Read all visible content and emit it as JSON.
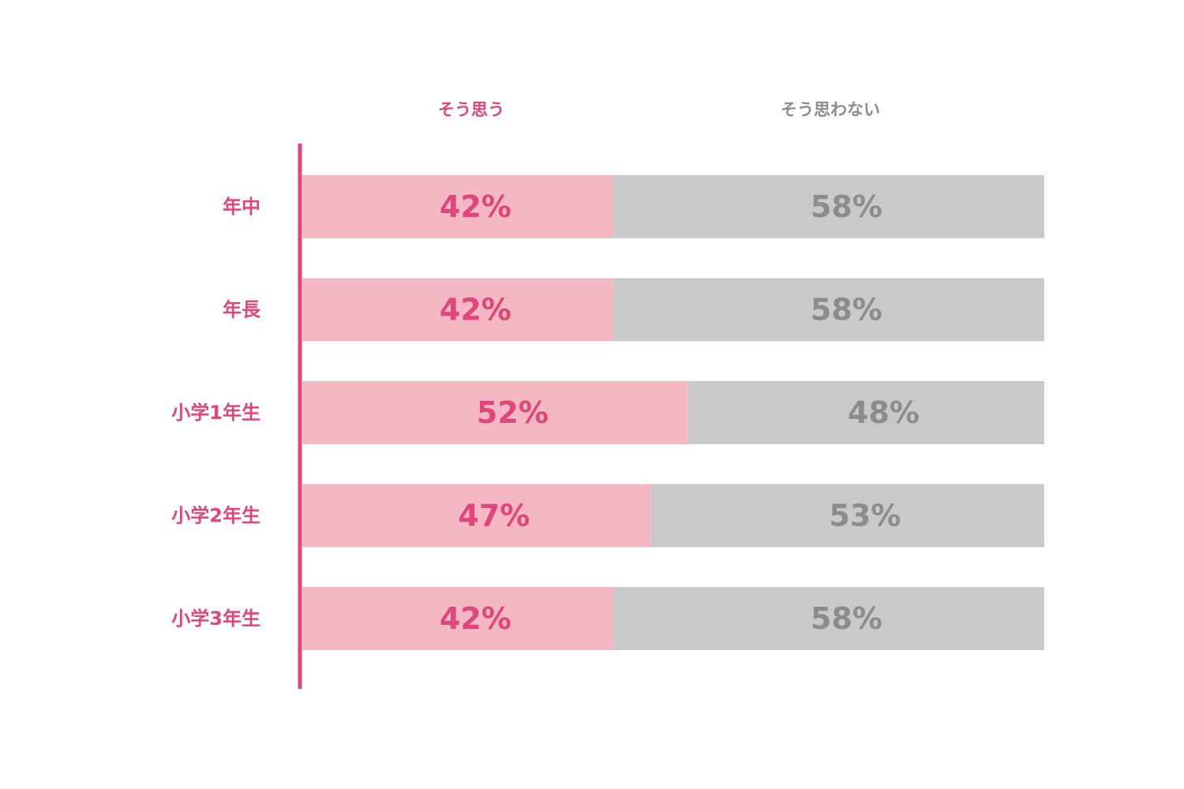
{
  "chart_data": {
    "type": "bar",
    "orientation": "horizontal",
    "stacked": true,
    "xlim": [
      0,
      100
    ],
    "categories": [
      "年中",
      "年長",
      "小学1年生",
      "小学2年生",
      "小学3年生"
    ],
    "series": [
      {
        "name": "そう思う",
        "values": [
          42,
          42,
          52,
          47,
          42
        ],
        "color": "#f4b8c2",
        "label_color": "#e0457b"
      },
      {
        "name": "そう思わない",
        "values": [
          58,
          58,
          48,
          53,
          58
        ],
        "color": "#c8c9ca",
        "label_color": "#8c8c8c"
      }
    ],
    "value_labels": [
      [
        "42%",
        "42%",
        "52%",
        "47%",
        "42%"
      ],
      [
        "58%",
        "58%",
        "48%",
        "53%",
        "58%"
      ]
    ],
    "category_label_color": "#e0457b",
    "axis_color": "#e0457b",
    "grid": false,
    "legend_position": "top"
  }
}
